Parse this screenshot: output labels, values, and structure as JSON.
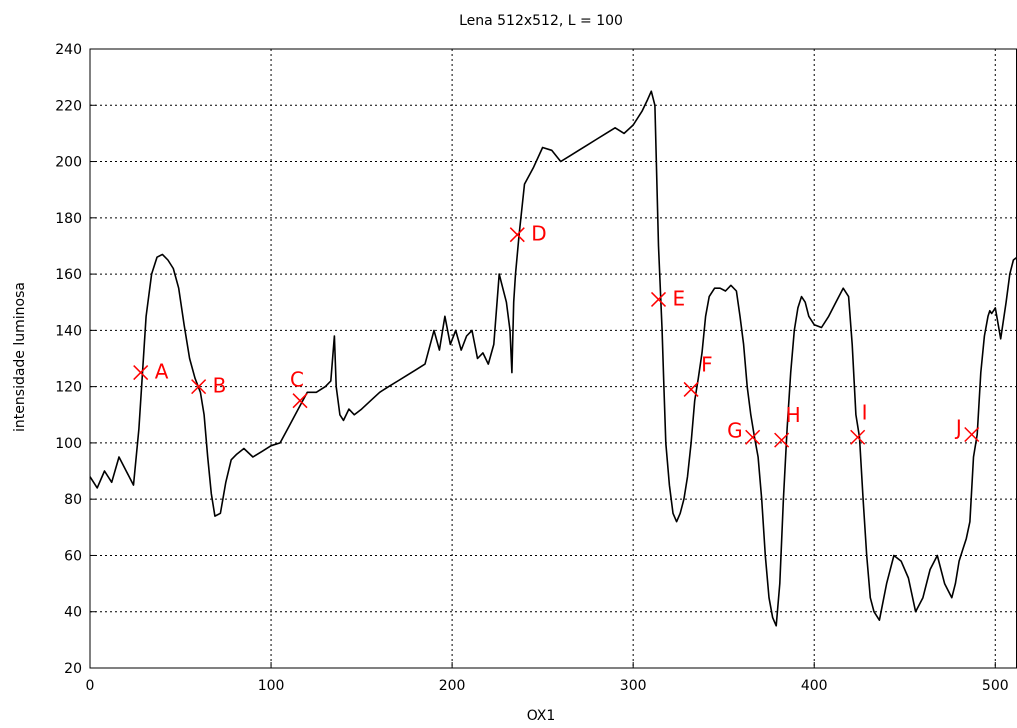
{
  "chart_data": {
    "type": "line",
    "title": "Lena 512x512, L = 100",
    "xlabel": "OX1",
    "ylabel": "intensidade luminosa",
    "xlim": [
      0,
      512
    ],
    "ylim": [
      20,
      240
    ],
    "x_ticks": [
      0,
      100,
      200,
      300,
      400,
      500
    ],
    "y_ticks": [
      20,
      40,
      60,
      80,
      100,
      120,
      140,
      160,
      180,
      200,
      220,
      240
    ],
    "grid": true,
    "line_color": "#000000",
    "marker_color": "#ff0000",
    "series": [
      {
        "x": [
          0,
          4,
          8,
          12,
          16,
          20,
          24,
          27,
          29,
          31,
          34,
          37,
          40,
          43,
          46,
          49,
          52,
          55,
          58,
          61,
          63,
          65,
          67,
          69,
          72,
          75,
          78,
          81,
          85,
          90,
          95,
          100,
          105,
          110,
          115,
          120,
          125,
          130,
          133,
          135,
          136,
          138,
          140,
          143,
          146,
          150,
          155,
          160,
          165,
          170,
          175,
          180,
          185,
          190,
          193,
          196,
          199,
          202,
          205,
          208,
          211,
          214,
          217,
          220,
          223,
          226,
          228,
          230,
          232,
          233,
          234,
          235,
          237,
          240,
          245,
          250,
          255,
          260,
          265,
          270,
          275,
          280,
          285,
          290,
          295,
          300,
          305,
          308,
          310,
          312,
          314,
          316,
          317,
          318,
          320,
          322,
          324,
          326,
          328,
          330,
          332,
          334,
          336,
          338,
          340,
          342,
          345,
          348,
          351,
          354,
          357,
          359,
          361,
          363,
          365,
          367,
          369,
          371,
          373,
          375,
          377,
          379,
          381,
          383,
          385,
          387,
          389,
          391,
          393,
          395,
          397,
          400,
          404,
          408,
          412,
          416,
          419,
          421,
          423,
          425,
          427,
          429,
          431,
          433,
          436,
          440,
          444,
          448,
          452,
          456,
          460,
          464,
          468,
          472,
          476,
          478,
          480,
          482,
          484,
          486,
          488,
          490,
          492,
          494,
          496,
          497,
          498,
          500,
          503,
          506,
          508,
          510,
          512
        ],
        "y": [
          88,
          84,
          90,
          86,
          95,
          90,
          85,
          105,
          125,
          145,
          160,
          166,
          167,
          165,
          162,
          155,
          142,
          130,
          123,
          118,
          110,
          95,
          82,
          74,
          75,
          86,
          94,
          96,
          98,
          95,
          97,
          99,
          100,
          106,
          112,
          118,
          118,
          120,
          122,
          138,
          120,
          110,
          108,
          112,
          110,
          112,
          115,
          118,
          120,
          122,
          124,
          126,
          128,
          140,
          133,
          145,
          135,
          140,
          133,
          138,
          140,
          130,
          132,
          128,
          135,
          160,
          155,
          150,
          140,
          125,
          150,
          160,
          174,
          192,
          198,
          205,
          204,
          200,
          202,
          204,
          206,
          208,
          210,
          212,
          210,
          213,
          218,
          222,
          225,
          220,
          170,
          140,
          120,
          100,
          85,
          75,
          72,
          75,
          80,
          88,
          100,
          115,
          123,
          132,
          145,
          152,
          155,
          155,
          154,
          156,
          154,
          145,
          135,
          120,
          110,
          102,
          95,
          80,
          60,
          45,
          38,
          35,
          50,
          80,
          105,
          125,
          140,
          148,
          152,
          150,
          145,
          142,
          141,
          145,
          150,
          155,
          152,
          135,
          110,
          102,
          80,
          60,
          45,
          40,
          37,
          50,
          60,
          58,
          52,
          40,
          45,
          55,
          60,
          50,
          45,
          50,
          58,
          62,
          66,
          72,
          95,
          103,
          125,
          138,
          145,
          147,
          146,
          148,
          137,
          150,
          160,
          165,
          166
        ]
      }
    ],
    "markers": [
      {
        "label": "A",
        "x": 28,
        "y": 125
      },
      {
        "label": "B",
        "x": 60,
        "y": 120
      },
      {
        "label": "C",
        "x": 116,
        "y": 115
      },
      {
        "label": "D",
        "x": 236,
        "y": 174
      },
      {
        "label": "E",
        "x": 314,
        "y": 151
      },
      {
        "label": "F",
        "x": 332,
        "y": 119
      },
      {
        "label": "G",
        "x": 366,
        "y": 102
      },
      {
        "label": "H",
        "x": 382,
        "y": 101
      },
      {
        "label": "I",
        "x": 424,
        "y": 102
      },
      {
        "label": "J",
        "x": 487,
        "y": 103
      }
    ]
  }
}
